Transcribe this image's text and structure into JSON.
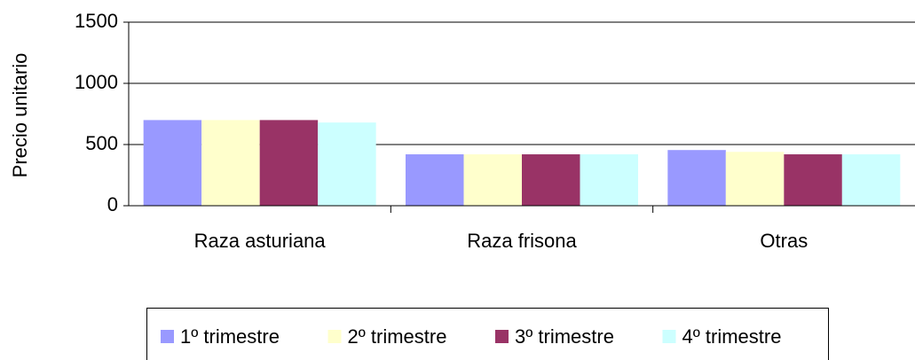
{
  "chart_data": {
    "type": "bar",
    "y_label": "Precio unitario",
    "categories": [
      "Raza asturiana",
      "Raza frisona",
      "Otras"
    ],
    "series": [
      {
        "name": "1º trimestre",
        "color": "#9999ff",
        "values": [
          700,
          420,
          455
        ]
      },
      {
        "name": "2º trimestre",
        "color": "#ffffcc",
        "values": [
          700,
          420,
          440
        ]
      },
      {
        "name": "3º trimestre",
        "color": "#993366",
        "values": [
          700,
          420,
          420
        ]
      },
      {
        "name": "4º trimestre",
        "color": "#ccffff",
        "values": [
          680,
          420,
          420
        ]
      }
    ],
    "ylim": [
      0,
      1500
    ],
    "yticks": [
      0,
      500,
      1000,
      1500
    ],
    "grid": true,
    "legend": "bottom"
  }
}
